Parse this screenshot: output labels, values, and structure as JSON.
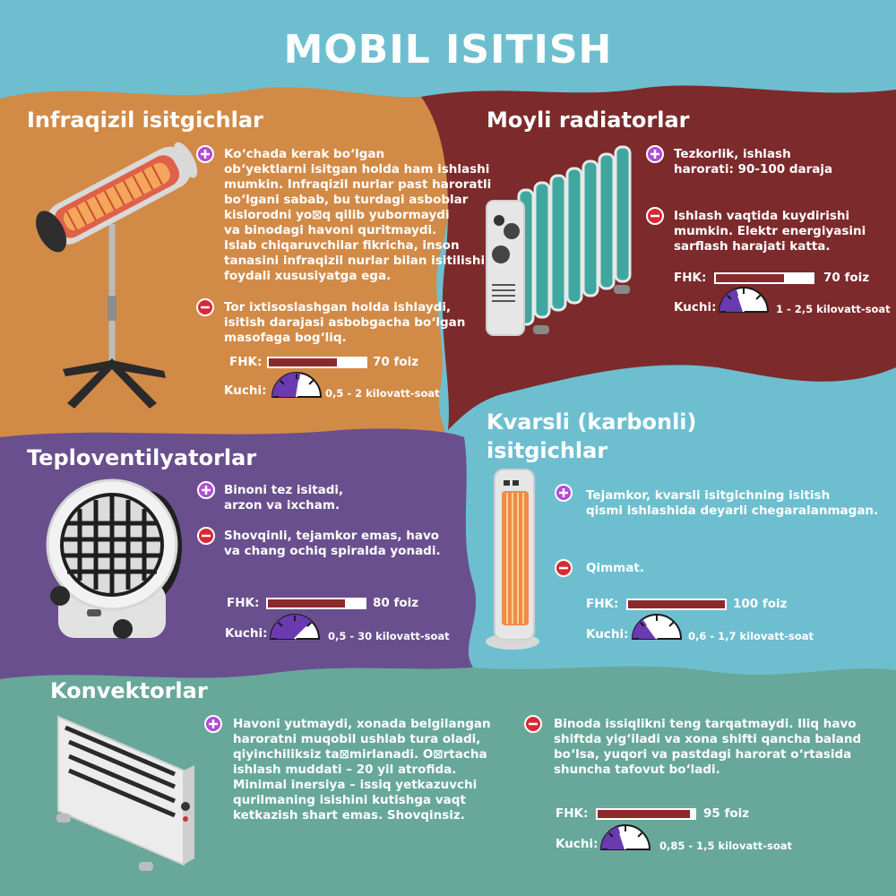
{
  "title": "MOBIL ISITISH",
  "labels": {
    "fhk": "FHK:",
    "kuchi": "Kuchi:"
  },
  "colors": {
    "sky": "#6dbfd0",
    "orange": "#d28a47",
    "maroon": "#7c2a2b",
    "purple": "#6a4f8e",
    "teal": "#67a89a",
    "plus": "#b24bd6",
    "minus": "#d72a34",
    "bar_fill": "#8a2a2c",
    "gauge_wedge": "#6a3ab0"
  },
  "sections": {
    "infrared": {
      "heading": "Infraqizil isitgichlar",
      "plus_text": [
        "Ko‘chada kerak bo‘lgan",
        "ob‘yektlarni isitgan holda ham ishlashi",
        "mumkin. Infraqizil nurlar past haroratli",
        "bo‘lgani sabab, bu turdagi asboblar",
        "kislorodni yo⊠q qilib yubormaydi",
        "va binodagi havoni quritmaydi.",
        "Islab chiqaruvchilar fikricha, inson",
        "tanasini infraqizil nurlar bilan isitilishi",
        "foydali xususiyatga ega."
      ],
      "minus_text": [
        "Tor ixtisoslashgan holda ishlaydi,",
        "isitish darajasi asbobgacha bo‘lgan",
        "masofaga bog‘liq."
      ],
      "efficiency_label": "70 foiz",
      "efficiency": 70,
      "power_label": "0,5 - 2 kilovatt-soat",
      "power_level": 0.55,
      "icon": "infrared-heater-icon"
    },
    "oil": {
      "heading": "Moyli radiatorlar",
      "plus_text": [
        "Tezkorlik, ishlash",
        "harorati: 90-100 daraja"
      ],
      "minus_text": [
        "Ishlash vaqtida kuydirishi",
        "mumkin. Elektr energiyasini",
        "sarflash harajati katta."
      ],
      "efficiency_label": "70 foiz",
      "efficiency": 70,
      "power_label": "1 - 2,5 kilovatt-soat",
      "power_level": 0.4,
      "icon": "oil-radiator-icon"
    },
    "fan": {
      "heading": "Teploventilyatorlar",
      "plus_text": [
        "Binoni tez isitadi,",
        "arzon va ixcham."
      ],
      "minus_text": [
        "Shovqinli, tejamkor emas, havo",
        "va chang ochiq spiralda yonadi."
      ],
      "efficiency_label": "80 foiz",
      "efficiency": 80,
      "power_label": "0,5 - 30 kilovatt-soat",
      "power_level": 0.75,
      "icon": "fan-heater-icon"
    },
    "quartz": {
      "heading_lines": [
        "Kvarsli (karbonli)",
        "isitgichlar"
      ],
      "plus_text": [
        "Tejamkor, kvarsli isitgichning isitish",
        "qismi ishlashida deyarli chegaralanmagan."
      ],
      "minus_text": [
        "Qimmat."
      ],
      "efficiency_label": "100 foiz",
      "efficiency": 100,
      "power_label": "0,6 - 1,7 kilovatt-soat",
      "power_level": 0.3,
      "icon": "quartz-heater-icon"
    },
    "convector": {
      "heading": "Konvektorlar",
      "plus_text": [
        "Havoni yutmaydi, xonada belgilangan",
        "haroratni muqobil ushlab tura oladi,",
        "qiyinchiliksiz ta⊠mirlanadi. O⊠rtacha",
        "ishlash muddati – 20 yil atrofida.",
        "Minimal inersiya – issiq yetkazuvchi",
        "qurilmaning isishini kutishga vaqt",
        "ketkazish shart emas. Shovqinsiz."
      ],
      "minus_text": [
        "Binoda issiqlikni teng tarqatmaydi. Iliq havo",
        "shiftda yig‘iladi va xona shifti qancha baland",
        "bo‘lsa, yuqori va pastdagi harorat o‘rtasida",
        "shuncha tafovut bo‘ladi."
      ],
      "efficiency_label": "95 foiz",
      "efficiency": 95,
      "power_label": "0,85 - 1,5 kilovatt-soat",
      "power_level": 0.4,
      "icon": "convector-heater-icon"
    }
  }
}
